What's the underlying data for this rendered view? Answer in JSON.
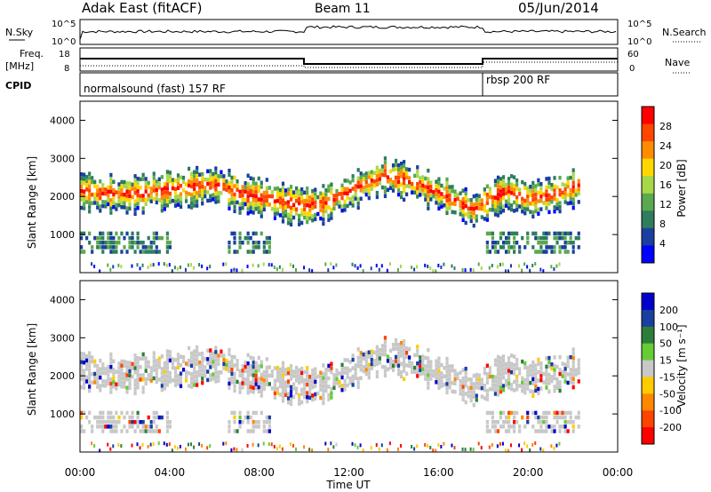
{
  "header": {
    "station": "Adak East (fitACF)",
    "beam": "Beam 11",
    "date": "05/Jun/2014"
  },
  "parameters": {
    "nsky_label": "N.Sky",
    "nsearch_label": "N.Search",
    "freq_label": "Freq.",
    "freq_unit": "[MHz]",
    "nave_label": "Nave",
    "cpid_label": "CPID",
    "left_ticks_top": [
      "10^5",
      "10^0"
    ],
    "right_ticks_top": [
      "10^5",
      "10^0"
    ],
    "left_ticks_mid": [
      "18",
      "8"
    ],
    "right_ticks_mid": [
      "60",
      "0"
    ]
  },
  "cpid_segments": [
    {
      "label": "normalsound (fast) 157 RF",
      "start_hour": 0
    },
    {
      "label": "rbsp 200 RF",
      "start_hour": 18
    }
  ],
  "colors": {
    "power_scale": [
      "#0000ff",
      "#1a3fa0",
      "#2e7d5c",
      "#5aa84f",
      "#a8d84a",
      "#ffd700",
      "#ff8c00",
      "#ff4500",
      "#ff0000"
    ],
    "velocity_scale": [
      "#0000cc",
      "#1a3fa0",
      "#2e7d3a",
      "#66cc33",
      "#c8c8c8",
      "#ffcc00",
      "#ff8800",
      "#ff4400",
      "#ff0000"
    ]
  },
  "chart_data": [
    {
      "type": "heatmap",
      "panel": "power",
      "xlabel": "",
      "ylabel": "Slant Range [km]",
      "yticks": [
        "1000",
        "2000",
        "3000",
        "4000"
      ],
      "colorbar_label": "Power [dB]",
      "colorbar_ticks": [
        "4",
        "8",
        "12",
        "16",
        "20",
        "24",
        "28"
      ],
      "xlim": [
        0,
        24
      ],
      "ylim": [
        0,
        4500
      ],
      "echo_bands": [
        {
          "x": [
            0,
            2,
            4,
            6,
            7.5,
            9,
            10,
            11,
            12,
            13.5,
            15,
            16.5,
            17.5,
            18,
            19,
            20,
            21,
            22,
            24
          ],
          "y": [
            2200,
            2100,
            2250,
            2350,
            2100,
            1900,
            1800,
            1900,
            2200,
            2600,
            2400,
            2000,
            1700,
            1900,
            2200,
            2000,
            2100,
            2300,
            2600
          ]
        }
      ]
    },
    {
      "type": "heatmap",
      "panel": "velocity",
      "xlabel": "Time UT",
      "ylabel": "Slant Range [km]",
      "yticks": [
        "1000",
        "2000",
        "3000",
        "4000"
      ],
      "xticks": [
        "00:00",
        "04:00",
        "08:00",
        "12:00",
        "16:00",
        "20:00",
        "00:00"
      ],
      "colorbar_label": "Velocity [m s⁻¹]",
      "colorbar_ticks": [
        "200",
        "100",
        "50",
        "15",
        "-15",
        "-50",
        "-100",
        "-200"
      ],
      "xlim": [
        0,
        24
      ],
      "ylim": [
        0,
        4500
      ]
    }
  ]
}
